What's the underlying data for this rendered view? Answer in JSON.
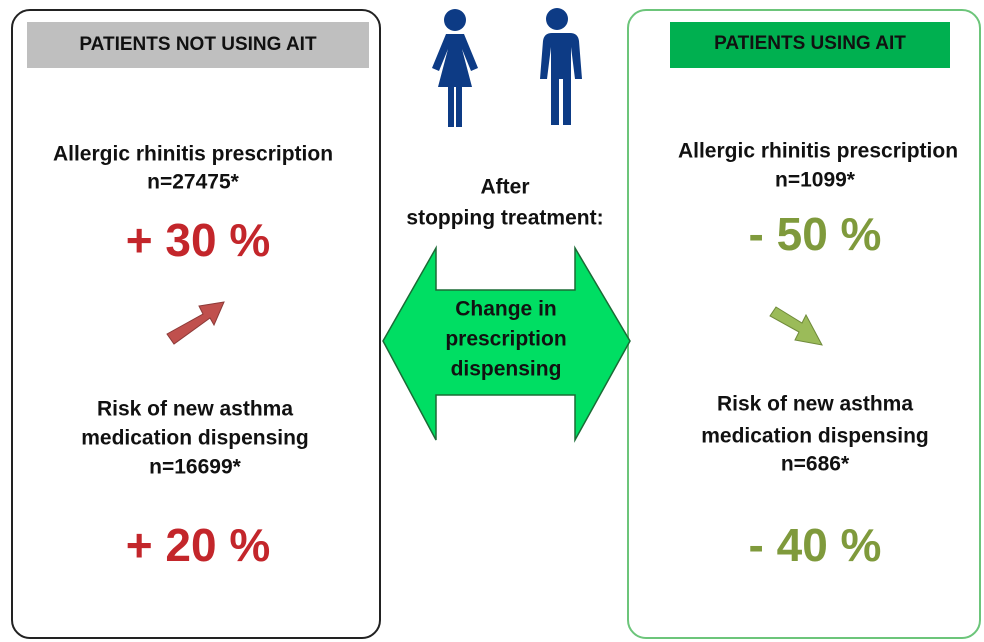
{
  "left": {
    "header": "PATIENTS NOT USING AIT",
    "items": [
      {
        "label_lines": [
          "Allergic rhinitis prescription"
        ],
        "n": "n=27475*",
        "change": "+ 30 %"
      },
      {
        "label_lines": [
          "Risk of new asthma",
          "medication dispensing"
        ],
        "n": "n=16699*",
        "change": "+ 20 %"
      }
    ]
  },
  "center": {
    "caption_lines": [
      "After",
      "stopping treatment:"
    ],
    "arrow_label_lines": [
      "Change in",
      "prescription",
      "dispensing"
    ]
  },
  "right": {
    "header": "PATIENTS USING AIT",
    "items": [
      {
        "label_lines": [
          "Allergic rhinitis prescription"
        ],
        "n": "n=1099*",
        "change": "- 50 %"
      },
      {
        "label_lines": [
          "Risk of new asthma",
          "medication dispensing"
        ],
        "n": "n=686*",
        "change": "- 40 %"
      }
    ]
  }
}
